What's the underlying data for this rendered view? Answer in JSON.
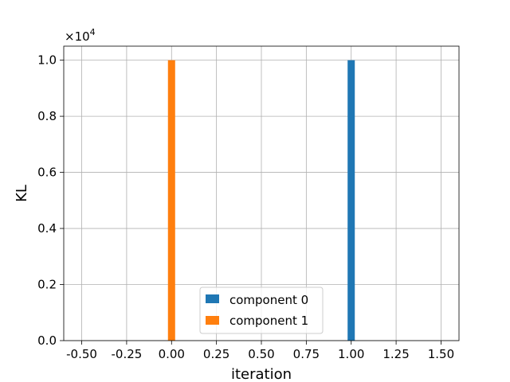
{
  "chart_data": {
    "type": "bar",
    "xlabel": "iteration",
    "ylabel": "KL",
    "xlim": [
      -0.6,
      1.6
    ],
    "ylim": [
      0,
      1.05
    ],
    "y_scale_factor": "×10",
    "y_scale_exponent": "4",
    "x_ticks": [
      "-0.50",
      "-0.25",
      "0.00",
      "0.25",
      "0.50",
      "0.75",
      "1.00",
      "1.25",
      "1.50"
    ],
    "x_tick_values": [
      -0.5,
      -0.25,
      0,
      0.25,
      0.5,
      0.75,
      1.0,
      1.25,
      1.5
    ],
    "y_ticks": [
      "0.0",
      "0.2",
      "0.4",
      "0.6",
      "0.8",
      "1.0"
    ],
    "y_tick_values": [
      0,
      0.2,
      0.4,
      0.6,
      0.8,
      1.0
    ],
    "grid": true,
    "legend_position": "bottom-center",
    "series": [
      {
        "name": "component 0",
        "color": "#1f77b4",
        "x": [
          1.0
        ],
        "values": [
          1.0
        ]
      },
      {
        "name": "component 1",
        "color": "#ff7f0e",
        "x": [
          0.0
        ],
        "values": [
          1.0
        ]
      }
    ]
  }
}
